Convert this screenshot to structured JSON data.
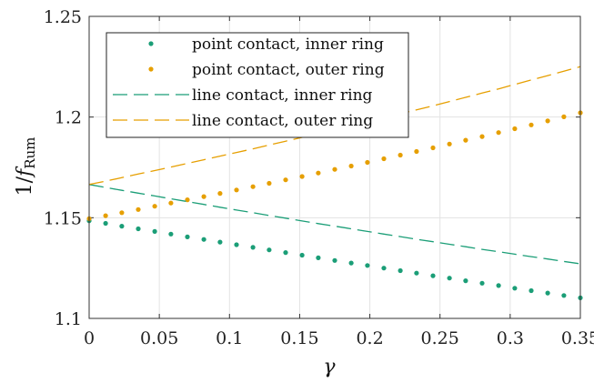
{
  "chart_data": {
    "type": "line",
    "xlabel": "γ",
    "ylabel": {
      "main": "1/",
      "f": "f",
      "sub": "Rum"
    },
    "xlim": [
      0,
      0.35
    ],
    "ylim": [
      1.1,
      1.25
    ],
    "xticks": [
      0,
      0.05,
      0.1,
      0.15,
      0.2,
      0.25,
      0.3,
      0.35
    ],
    "xtick_labels": [
      "0",
      "0.05",
      "0.1",
      "0.15",
      "0.2",
      "0.25",
      "0.3",
      "0.35"
    ],
    "yticks": [
      1.1,
      1.15,
      1.2,
      1.25
    ],
    "ytick_labels": [
      "1.1",
      "1.15",
      "1.2",
      "1.25"
    ],
    "grid": true,
    "legend_position": "top-left",
    "x": [
      0,
      0.0117,
      0.0233,
      0.035,
      0.0467,
      0.0583,
      0.07,
      0.0817,
      0.0933,
      0.105,
      0.1167,
      0.1283,
      0.14,
      0.1517,
      0.1633,
      0.175,
      0.1867,
      0.1983,
      0.21,
      0.2217,
      0.2333,
      0.245,
      0.2567,
      0.2683,
      0.28,
      0.2917,
      0.3033,
      0.315,
      0.3267,
      0.3383,
      0.35
    ],
    "series": [
      {
        "name": "point contact, inner ring",
        "style": "dotted",
        "color": "#1b9e77",
        "values": [
          1.1485,
          1.1472,
          1.1458,
          1.1445,
          1.1432,
          1.1419,
          1.1405,
          1.1392,
          1.1379,
          1.1366,
          1.1353,
          1.134,
          1.1327,
          1.1314,
          1.1301,
          1.1288,
          1.1275,
          1.1263,
          1.125,
          1.1237,
          1.1225,
          1.1212,
          1.12,
          1.1187,
          1.1175,
          1.1163,
          1.115,
          1.1138,
          1.1126,
          1.1114,
          1.1102
        ]
      },
      {
        "name": "point contact, outer ring",
        "style": "dotted",
        "color": "#e69f00",
        "values": [
          1.1495,
          1.151,
          1.1525,
          1.1541,
          1.1557,
          1.1573,
          1.1589,
          1.1605,
          1.1621,
          1.1638,
          1.1654,
          1.1671,
          1.1688,
          1.1705,
          1.1722,
          1.174,
          1.1757,
          1.1775,
          1.1793,
          1.1811,
          1.1829,
          1.1847,
          1.1866,
          1.1885,
          1.1903,
          1.1923,
          1.1942,
          1.1961,
          1.1981,
          1.2001,
          1.2021
        ]
      },
      {
        "name": "line contact, inner ring",
        "style": "dashed",
        "color": "#1b9e77",
        "values": [
          1.1665,
          1.165,
          1.1636,
          1.1622,
          1.1608,
          1.1594,
          1.158,
          1.1566,
          1.1552,
          1.1538,
          1.1525,
          1.1511,
          1.1498,
          1.1484,
          1.1471,
          1.1458,
          1.1445,
          1.1432,
          1.1419,
          1.1406,
          1.1393,
          1.1381,
          1.1368,
          1.1356,
          1.1343,
          1.1331,
          1.1319,
          1.1307,
          1.1295,
          1.1283,
          1.1271
        ]
      },
      {
        "name": "line contact, outer ring",
        "style": "dashed",
        "color": "#e69f00",
        "values": [
          1.1665,
          1.1682,
          1.1699,
          1.1717,
          1.1734,
          1.1752,
          1.177,
          1.1788,
          1.1806,
          1.1824,
          1.1842,
          1.1861,
          1.188,
          1.1899,
          1.1918,
          1.1937,
          1.1956,
          1.1976,
          1.1996,
          1.2016,
          1.2036,
          1.2056,
          1.2077,
          1.2098,
          1.2119,
          1.214,
          1.2162,
          1.2184,
          1.2206,
          1.2228,
          1.225
        ]
      }
    ]
  }
}
